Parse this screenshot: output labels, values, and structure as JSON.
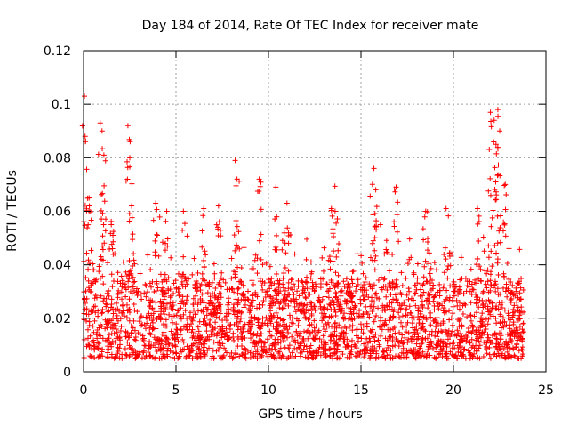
{
  "chart_data": {
    "type": "scatter",
    "title": "Day 184 of 2014, Rate Of TEC Index for receiver mate",
    "xlabel": "GPS time / hours",
    "ylabel": "ROTI / TECUs",
    "xlim": [
      0,
      25
    ],
    "ylim": [
      0,
      0.12
    ],
    "x_ticks": [
      0,
      5,
      10,
      15,
      20,
      25
    ],
    "x_tick_labels": [
      "0",
      "5",
      "10",
      "15",
      "20",
      "25"
    ],
    "y_ticks": [
      0,
      0.02,
      0.04,
      0.06,
      0.08,
      0.1,
      0.12
    ],
    "y_tick_labels": [
      "0",
      "0.02",
      "0.04",
      "0.06",
      "0.08",
      "0.1",
      "0.12"
    ],
    "grid": true,
    "marker": "+",
    "color": "#ff0000",
    "data_x_range": [
      0,
      23.8
    ],
    "baseline_band": [
      0.005,
      0.035
    ],
    "notable_peaks": [
      {
        "x": 0.05,
        "y": 0.103
      },
      {
        "x": 0.1,
        "y": 0.086
      },
      {
        "x": 0.3,
        "y": 0.065
      },
      {
        "x": 0.9,
        "y": 0.093
      },
      {
        "x": 1.0,
        "y": 0.09
      },
      {
        "x": 1.1,
        "y": 0.081
      },
      {
        "x": 1.5,
        "y": 0.055
      },
      {
        "x": 2.4,
        "y": 0.092
      },
      {
        "x": 2.5,
        "y": 0.08
      },
      {
        "x": 2.6,
        "y": 0.062
      },
      {
        "x": 3.9,
        "y": 0.063
      },
      {
        "x": 4.5,
        "y": 0.06
      },
      {
        "x": 5.4,
        "y": 0.06
      },
      {
        "x": 6.5,
        "y": 0.061
      },
      {
        "x": 7.3,
        "y": 0.062
      },
      {
        "x": 8.2,
        "y": 0.079
      },
      {
        "x": 8.3,
        "y": 0.072
      },
      {
        "x": 9.5,
        "y": 0.072
      },
      {
        "x": 10.4,
        "y": 0.069
      },
      {
        "x": 11.0,
        "y": 0.063
      },
      {
        "x": 13.4,
        "y": 0.061
      },
      {
        "x": 13.6,
        "y": 0.06
      },
      {
        "x": 15.7,
        "y": 0.076
      },
      {
        "x": 15.8,
        "y": 0.068
      },
      {
        "x": 16.9,
        "y": 0.069
      },
      {
        "x": 18.5,
        "y": 0.06
      },
      {
        "x": 19.6,
        "y": 0.061
      },
      {
        "x": 21.3,
        "y": 0.061
      },
      {
        "x": 22.0,
        "y": 0.097
      },
      {
        "x": 22.2,
        "y": 0.094
      },
      {
        "x": 22.4,
        "y": 0.098
      },
      {
        "x": 22.5,
        "y": 0.09
      },
      {
        "x": 22.3,
        "y": 0.085
      },
      {
        "x": 22.8,
        "y": 0.07
      }
    ]
  }
}
